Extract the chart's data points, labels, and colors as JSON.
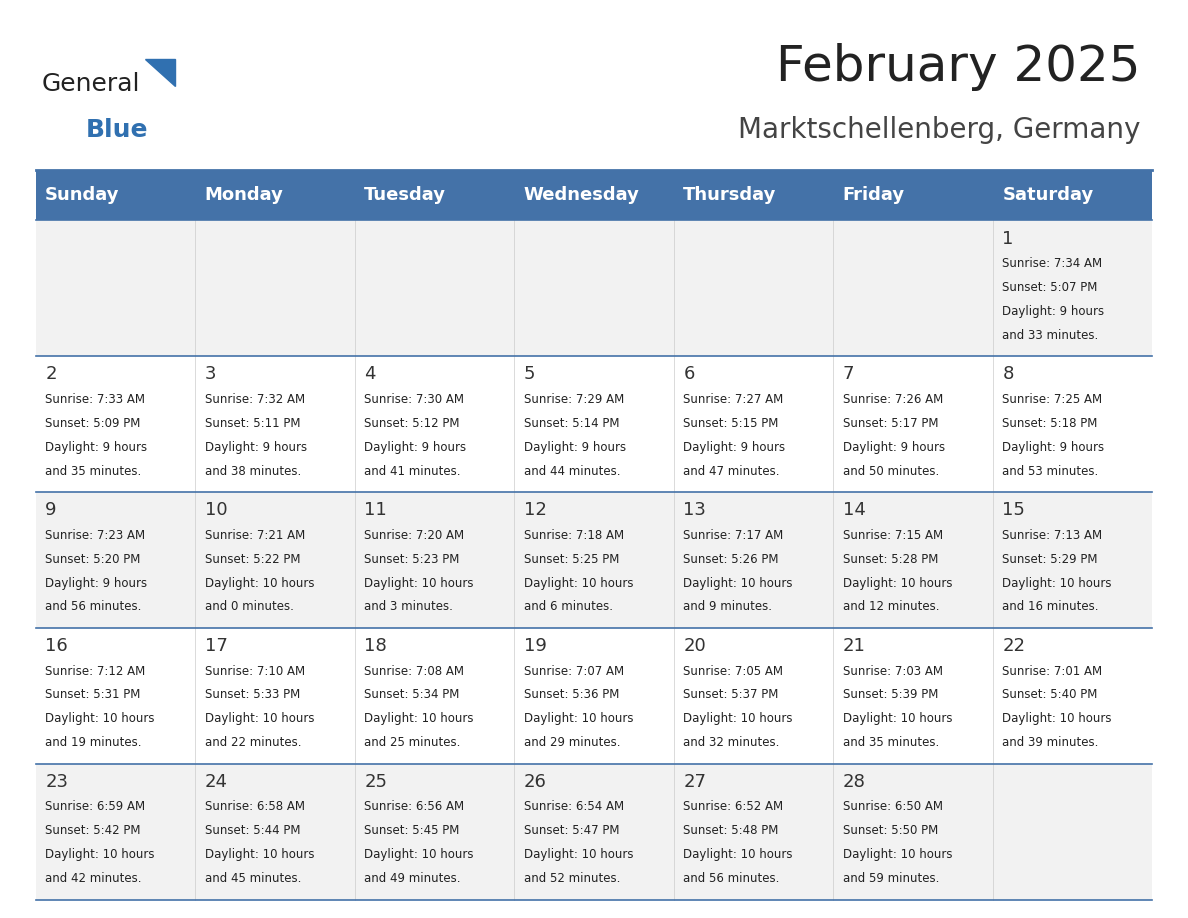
{
  "title": "February 2025",
  "subtitle": "Marktschellenberg, Germany",
  "days_of_week": [
    "Sunday",
    "Monday",
    "Tuesday",
    "Wednesday",
    "Thursday",
    "Friday",
    "Saturday"
  ],
  "header_bg": "#4472A8",
  "header_text": "#FFFFFF",
  "row_bg_odd": "#F2F2F2",
  "row_bg_even": "#FFFFFF",
  "cell_text_color": "#222222",
  "day_num_color": "#333333",
  "border_color": "#4472A8",
  "title_color": "#222222",
  "subtitle_color": "#444444",
  "logo_general_color": "#222222",
  "logo_blue_color": "#3070B0",
  "weeks": [
    [
      {
        "day": null,
        "sunrise": null,
        "sunset": null,
        "daylight": null
      },
      {
        "day": null,
        "sunrise": null,
        "sunset": null,
        "daylight": null
      },
      {
        "day": null,
        "sunrise": null,
        "sunset": null,
        "daylight": null
      },
      {
        "day": null,
        "sunrise": null,
        "sunset": null,
        "daylight": null
      },
      {
        "day": null,
        "sunrise": null,
        "sunset": null,
        "daylight": null
      },
      {
        "day": null,
        "sunrise": null,
        "sunset": null,
        "daylight": null
      },
      {
        "day": 1,
        "sunrise": "7:34 AM",
        "sunset": "5:07 PM",
        "daylight": "9 hours and 33 minutes."
      }
    ],
    [
      {
        "day": 2,
        "sunrise": "7:33 AM",
        "sunset": "5:09 PM",
        "daylight": "9 hours and 35 minutes."
      },
      {
        "day": 3,
        "sunrise": "7:32 AM",
        "sunset": "5:11 PM",
        "daylight": "9 hours and 38 minutes."
      },
      {
        "day": 4,
        "sunrise": "7:30 AM",
        "sunset": "5:12 PM",
        "daylight": "9 hours and 41 minutes."
      },
      {
        "day": 5,
        "sunrise": "7:29 AM",
        "sunset": "5:14 PM",
        "daylight": "9 hours and 44 minutes."
      },
      {
        "day": 6,
        "sunrise": "7:27 AM",
        "sunset": "5:15 PM",
        "daylight": "9 hours and 47 minutes."
      },
      {
        "day": 7,
        "sunrise": "7:26 AM",
        "sunset": "5:17 PM",
        "daylight": "9 hours and 50 minutes."
      },
      {
        "day": 8,
        "sunrise": "7:25 AM",
        "sunset": "5:18 PM",
        "daylight": "9 hours and 53 minutes."
      }
    ],
    [
      {
        "day": 9,
        "sunrise": "7:23 AM",
        "sunset": "5:20 PM",
        "daylight": "9 hours and 56 minutes."
      },
      {
        "day": 10,
        "sunrise": "7:21 AM",
        "sunset": "5:22 PM",
        "daylight": "10 hours and 0 minutes."
      },
      {
        "day": 11,
        "sunrise": "7:20 AM",
        "sunset": "5:23 PM",
        "daylight": "10 hours and 3 minutes."
      },
      {
        "day": 12,
        "sunrise": "7:18 AM",
        "sunset": "5:25 PM",
        "daylight": "10 hours and 6 minutes."
      },
      {
        "day": 13,
        "sunrise": "7:17 AM",
        "sunset": "5:26 PM",
        "daylight": "10 hours and 9 minutes."
      },
      {
        "day": 14,
        "sunrise": "7:15 AM",
        "sunset": "5:28 PM",
        "daylight": "10 hours and 12 minutes."
      },
      {
        "day": 15,
        "sunrise": "7:13 AM",
        "sunset": "5:29 PM",
        "daylight": "10 hours and 16 minutes."
      }
    ],
    [
      {
        "day": 16,
        "sunrise": "7:12 AM",
        "sunset": "5:31 PM",
        "daylight": "10 hours and 19 minutes."
      },
      {
        "day": 17,
        "sunrise": "7:10 AM",
        "sunset": "5:33 PM",
        "daylight": "10 hours and 22 minutes."
      },
      {
        "day": 18,
        "sunrise": "7:08 AM",
        "sunset": "5:34 PM",
        "daylight": "10 hours and 25 minutes."
      },
      {
        "day": 19,
        "sunrise": "7:07 AM",
        "sunset": "5:36 PM",
        "daylight": "10 hours and 29 minutes."
      },
      {
        "day": 20,
        "sunrise": "7:05 AM",
        "sunset": "5:37 PM",
        "daylight": "10 hours and 32 minutes."
      },
      {
        "day": 21,
        "sunrise": "7:03 AM",
        "sunset": "5:39 PM",
        "daylight": "10 hours and 35 minutes."
      },
      {
        "day": 22,
        "sunrise": "7:01 AM",
        "sunset": "5:40 PM",
        "daylight": "10 hours and 39 minutes."
      }
    ],
    [
      {
        "day": 23,
        "sunrise": "6:59 AM",
        "sunset": "5:42 PM",
        "daylight": "10 hours and 42 minutes."
      },
      {
        "day": 24,
        "sunrise": "6:58 AM",
        "sunset": "5:44 PM",
        "daylight": "10 hours and 45 minutes."
      },
      {
        "day": 25,
        "sunrise": "6:56 AM",
        "sunset": "5:45 PM",
        "daylight": "10 hours and 49 minutes."
      },
      {
        "day": 26,
        "sunrise": "6:54 AM",
        "sunset": "5:47 PM",
        "daylight": "10 hours and 52 minutes."
      },
      {
        "day": 27,
        "sunrise": "6:52 AM",
        "sunset": "5:48 PM",
        "daylight": "10 hours and 56 minutes."
      },
      {
        "day": 28,
        "sunrise": "6:50 AM",
        "sunset": "5:50 PM",
        "daylight": "10 hours and 59 minutes."
      },
      {
        "day": null,
        "sunrise": null,
        "sunset": null,
        "daylight": null
      }
    ]
  ]
}
